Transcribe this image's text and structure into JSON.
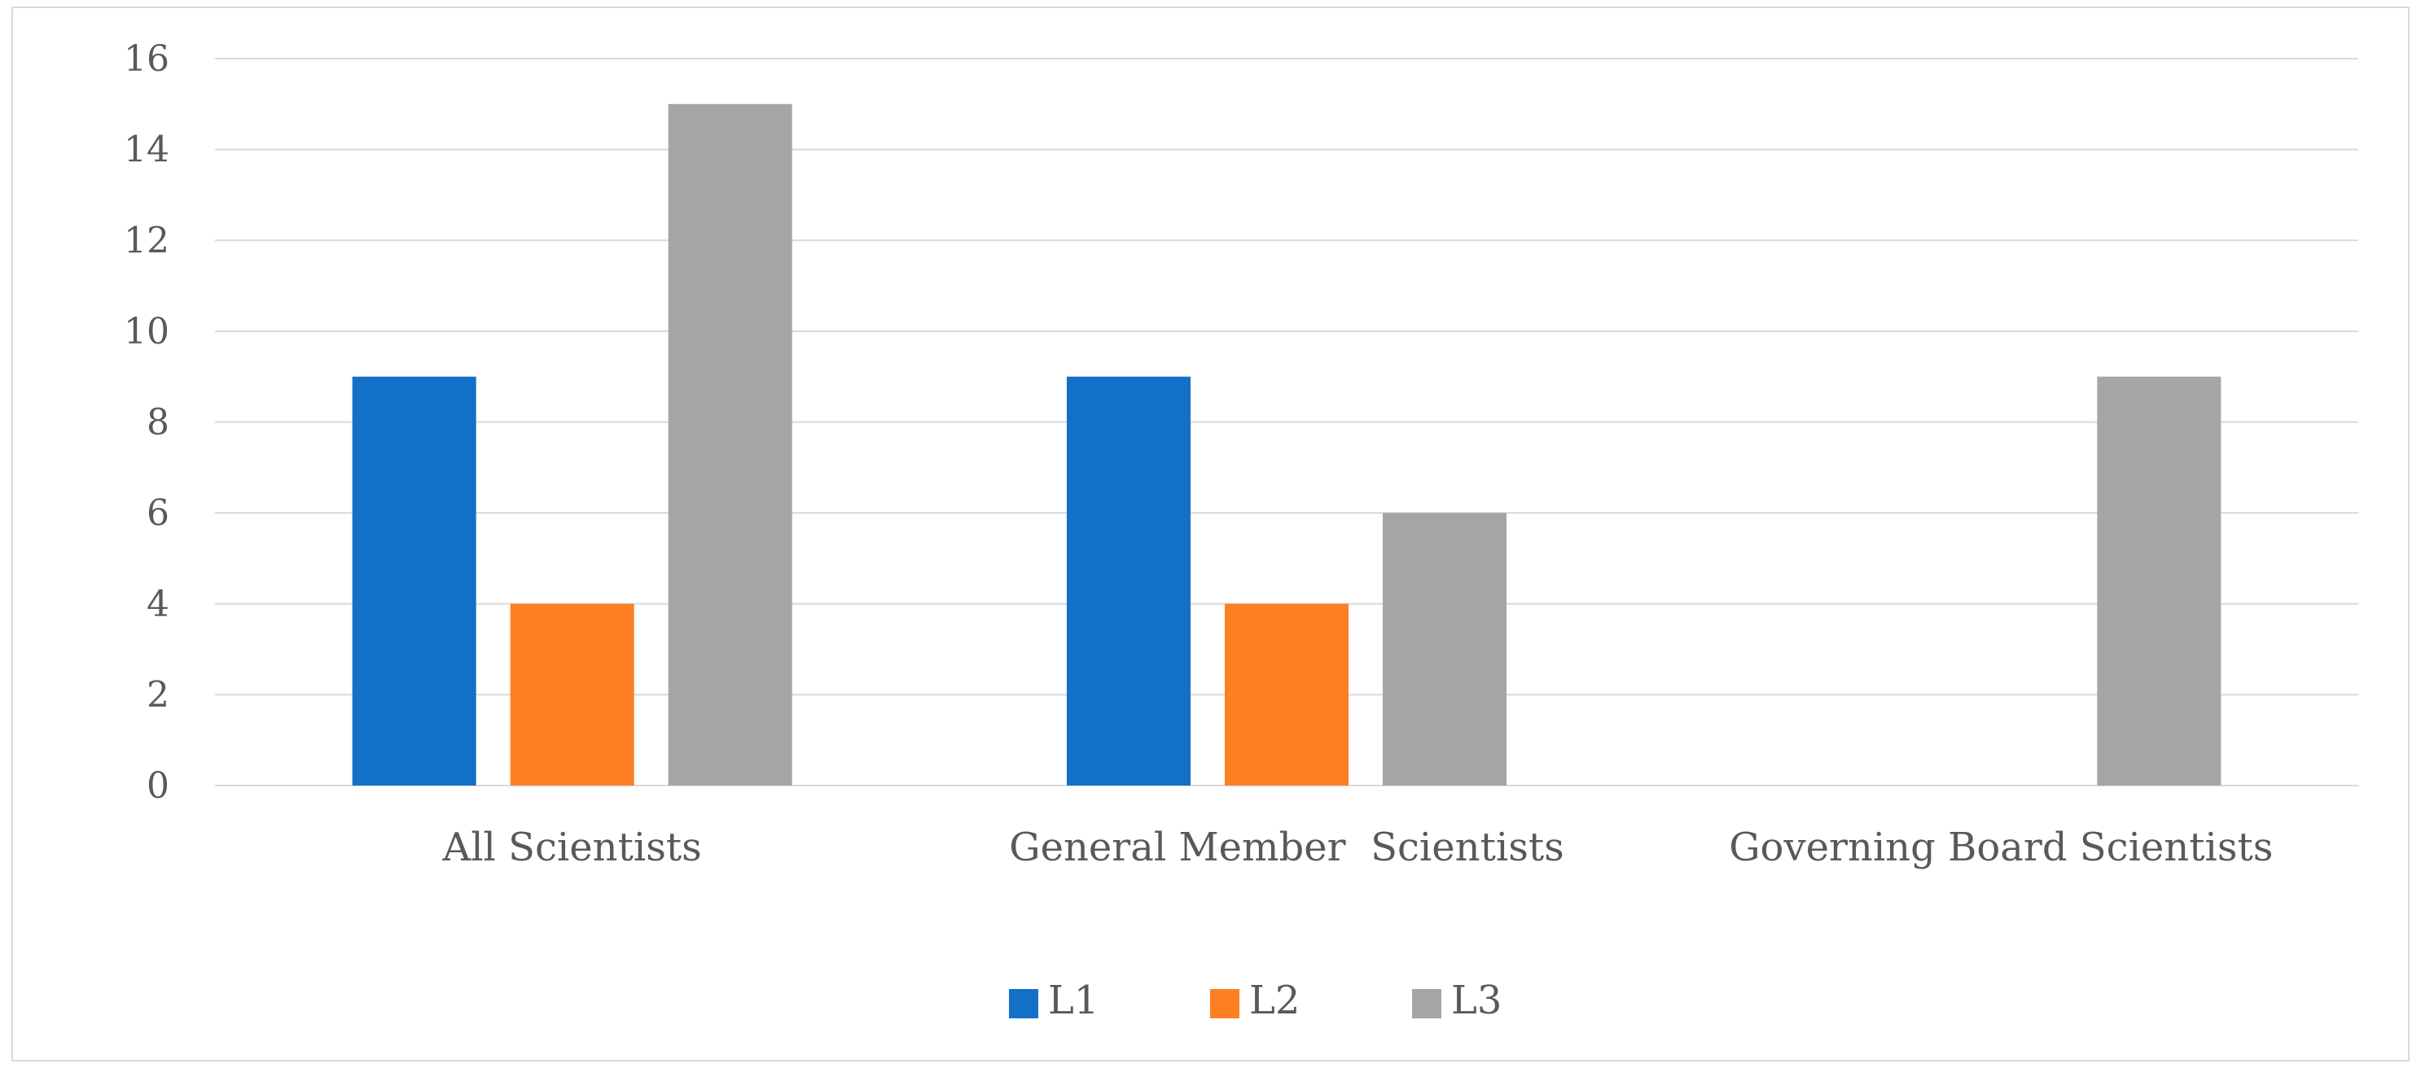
{
  "chart_data": {
    "type": "bar",
    "categories": [
      "All Scientists",
      "General Member  Scientists",
      "Governing Board Scientists"
    ],
    "series": [
      {
        "name": "L1",
        "color": "#1370c8",
        "values": [
          9,
          9,
          0
        ]
      },
      {
        "name": "L2",
        "color": "#fd7e23",
        "values": [
          4,
          4,
          0
        ]
      },
      {
        "name": "L3",
        "color": "#a5a5a5",
        "values": [
          15,
          6,
          9
        ]
      }
    ],
    "ylim": [
      0,
      16
    ],
    "yticks": [
      0,
      2,
      4,
      6,
      8,
      10,
      12,
      14,
      16
    ],
    "grid": true,
    "legend": "bottom-center",
    "gridline_color": "#d9d9d9",
    "text_color": "#595959"
  }
}
